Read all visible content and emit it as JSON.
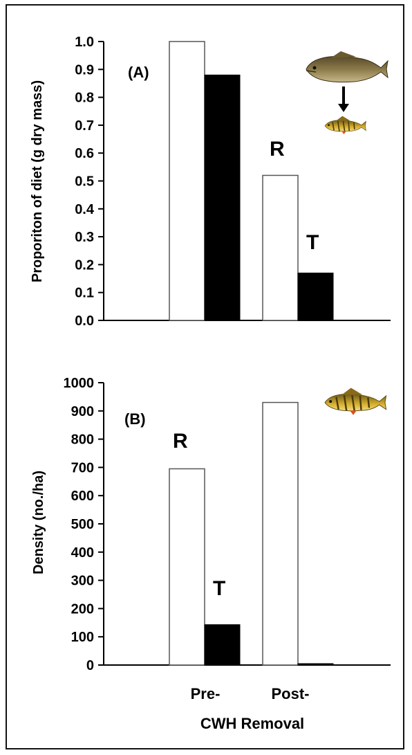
{
  "chart_data": [
    {
      "type": "bar",
      "panel_label": "(A)",
      "ylabel": "Proporiton of diet (g dry mass)",
      "ylim": [
        0,
        1.0
      ],
      "yticks": [
        "0.0",
        "0.1",
        "0.2",
        "0.3",
        "0.4",
        "0.5",
        "0.6",
        "0.7",
        "0.8",
        "0.9",
        "1.0"
      ],
      "categories": [
        "Pre-",
        "Post-"
      ],
      "series": [
        {
          "name": "R",
          "values": [
            1.0,
            0.52
          ]
        },
        {
          "name": "T",
          "values": [
            0.88,
            0.17
          ]
        }
      ],
      "annotations": [
        "R",
        "T"
      ],
      "icons": [
        "largemouth-bass-icon",
        "down-arrow-icon",
        "yellow-perch-icon"
      ]
    },
    {
      "type": "bar",
      "panel_label": "(B)",
      "ylabel": "Density (no./ha)",
      "ylim": [
        0,
        1000
      ],
      "yticks": [
        "0",
        "100",
        "200",
        "300",
        "400",
        "500",
        "600",
        "700",
        "800",
        "900",
        "1000"
      ],
      "categories": [
        "Pre-",
        "Post-"
      ],
      "series": [
        {
          "name": "R",
          "values": [
            695,
            930
          ]
        },
        {
          "name": "T",
          "values": [
            143,
            5
          ]
        }
      ],
      "annotations": [
        "R",
        "T"
      ],
      "icons": [
        "yellow-perch-icon"
      ]
    }
  ],
  "xaxis": {
    "tick_labels": [
      "Pre-",
      "Post-"
    ],
    "title": "CWH Removal"
  },
  "colors": {
    "R": "#ffffff",
    "T": "#000000",
    "stroke": "#555555"
  }
}
